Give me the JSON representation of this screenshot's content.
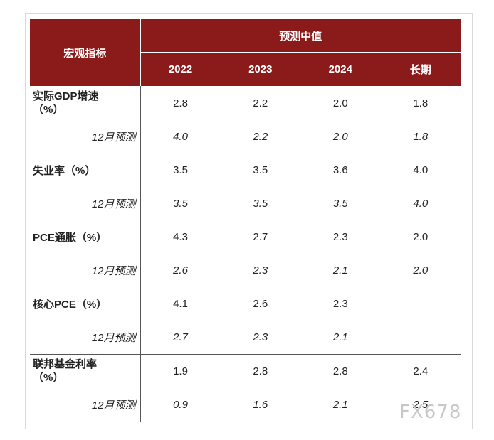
{
  "header": {
    "row_header": "宏观指标",
    "group_header": "预测中值",
    "years": [
      "2022",
      "2023",
      "2024",
      "长期"
    ]
  },
  "rows": [
    {
      "label": "实际GDP增速（%）",
      "values": [
        "2.8",
        "2.2",
        "2.0",
        "1.8"
      ]
    },
    {
      "label": "12月预测",
      "values": [
        "4.0",
        "2.2",
        "2.0",
        "1.8"
      ]
    },
    {
      "label": "失业率（%）",
      "values": [
        "3.5",
        "3.5",
        "3.6",
        "4.0"
      ]
    },
    {
      "label": "12月预测",
      "values": [
        "3.5",
        "3.5",
        "3.5",
        "4.0"
      ]
    },
    {
      "label": "PCE通胀（%）",
      "values": [
        "4.3",
        "2.7",
        "2.3",
        "2.0"
      ]
    },
    {
      "label": "12月预测",
      "values": [
        "2.6",
        "2.3",
        "2.1",
        "2.0"
      ]
    },
    {
      "label": "核心PCE（%）",
      "values": [
        "4.1",
        "2.6",
        "2.3",
        ""
      ]
    },
    {
      "label": "12月预测",
      "values": [
        "2.7",
        "2.3",
        "2.1",
        ""
      ]
    },
    {
      "label": "联邦基金利率（%）",
      "values": [
        "1.9",
        "2.8",
        "2.8",
        "2.4"
      ]
    },
    {
      "label": "12月预测",
      "values": [
        "0.9",
        "1.6",
        "2.1",
        "2.5"
      ]
    }
  ],
  "watermark": "FX678"
}
